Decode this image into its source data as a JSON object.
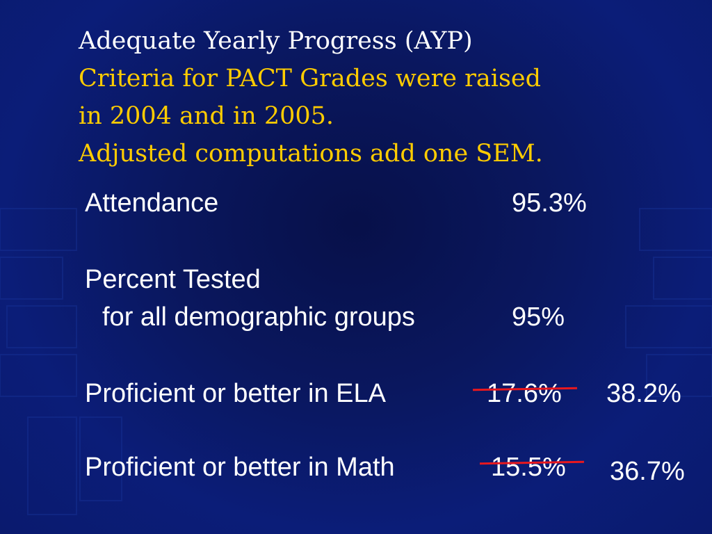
{
  "slide": {
    "title_line": "Adequate Yearly Progress (AYP)",
    "subtitle_lines": [
      "Criteria for PACT Grades were raised",
      "in 2004 and in 2005.",
      "Adjusted computations add one SEM."
    ],
    "colors": {
      "title": "#ffffff",
      "subtitle": "#ffcc00",
      "strike": "#e8181e",
      "background": "#0a175e"
    }
  },
  "criteria": [
    {
      "label": "Attendance",
      "value": "95.3%"
    },
    {
      "label": "Percent Tested",
      "sublabel": "for all demographic groups",
      "value": "95%"
    },
    {
      "label": "Proficient or better in ELA",
      "old_value": "17.6%",
      "new_value": "38.2%"
    },
    {
      "label": "Proficient or better in Math",
      "old_value": "15.5%",
      "new_value": "36.7%"
    }
  ]
}
